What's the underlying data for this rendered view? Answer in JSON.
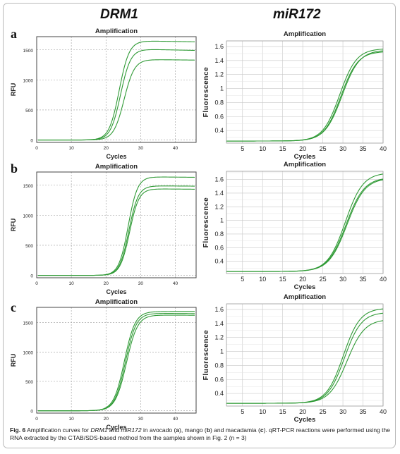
{
  "column_headers": {
    "left": "DRM1",
    "right": "miR172"
  },
  "panel_letters": [
    "a",
    "b",
    "c"
  ],
  "caption": {
    "label": "Fig. 6",
    "t1": "  Amplification curves for ",
    "gene": "DRM1",
    "t2": " and ",
    "mirna": "miR172",
    "t3": " in avocado (",
    "a": "a",
    "t4": "), mango (",
    "b": "b",
    "t5": ") and macadamia (",
    "c": "c",
    "t6": "). qRT-PCR reactions were performed using the RNA extracted by the CTAB/SDS-based method from the samples shown in Fig. 2 (n = 3)"
  },
  "colors": {
    "curve": "#2f9a35",
    "grid": "#c8c8c8",
    "border_left": "#444444",
    "border_right": "#999999"
  },
  "chart_data": [
    {
      "id": "a-DRM1",
      "type": "line",
      "title": "Amplification",
      "xlabel": "Cycles",
      "ylabel": "RFU",
      "xlim": [
        0,
        46
      ],
      "ylim": [
        -40,
        1720
      ],
      "xticks": [
        0,
        10,
        20,
        30,
        40
      ],
      "yticks": [
        0,
        500,
        1000,
        1500
      ],
      "xtick_labels": [
        "0",
        "10",
        "20",
        "30",
        "40"
      ],
      "ytick_labels": [
        "0",
        "500",
        "1000",
        "1500"
      ],
      "grid": "dashed",
      "series": [
        {
          "type": "sigmoid",
          "base": 0,
          "plateau": 1650,
          "mid": 23.8,
          "slope": 1.45,
          "tail": -1
        },
        {
          "type": "sigmoid",
          "base": 0,
          "plateau": 1510,
          "mid": 24.2,
          "slope": 1.45,
          "tail": -1.2
        },
        {
          "type": "sigmoid",
          "base": 0,
          "plateau": 1340,
          "mid": 25.2,
          "slope": 1.5,
          "tail": -0.7
        }
      ]
    },
    {
      "id": "a-miR172",
      "type": "line",
      "title": "Amplification",
      "xlabel": "Cycles",
      "ylabel": "Fluorescence",
      "xlim": [
        1,
        40
      ],
      "ylim": [
        0.22,
        1.68
      ],
      "xticks": [
        5,
        10,
        15,
        20,
        25,
        30,
        35,
        40
      ],
      "yticks": [
        0.4,
        0.6,
        0.8,
        1.0,
        1.2,
        1.4,
        1.6
      ],
      "xtick_labels": [
        "5",
        "10",
        "15",
        "20",
        "25",
        "30",
        "35",
        "40"
      ],
      "ytick_labels": [
        "0.4",
        "0.6",
        "0.8",
        "1",
        "1.2",
        "1.4",
        "1.6"
      ],
      "grid": "solid",
      "series": [
        {
          "type": "sigmoid",
          "base": 0.25,
          "plateau": 1.57,
          "mid": 29.2,
          "slope": 2.1,
          "tail": 0
        },
        {
          "type": "sigmoid",
          "base": 0.25,
          "plateau": 1.53,
          "mid": 29.5,
          "slope": 2.1,
          "tail": 0
        },
        {
          "type": "sigmoid",
          "base": 0.25,
          "plateau": 1.55,
          "mid": 29.8,
          "slope": 2.15,
          "tail": 0
        }
      ]
    },
    {
      "id": "b-DRM1",
      "type": "line",
      "title": "Amplification",
      "xlabel": "Cycles",
      "ylabel": "RFU",
      "xlim": [
        0,
        46
      ],
      "ylim": [
        -40,
        1720
      ],
      "xticks": [
        0,
        10,
        20,
        30,
        40
      ],
      "yticks": [
        0,
        500,
        1000,
        1500
      ],
      "xtick_labels": [
        "0",
        "10",
        "20",
        "30",
        "40"
      ],
      "ytick_labels": [
        "0",
        "500",
        "1000",
        "1500"
      ],
      "grid": "dashed",
      "series": [
        {
          "type": "sigmoid",
          "base": 0,
          "plateau": 1640,
          "mid": 26.4,
          "slope": 1.35,
          "tail": -0.6
        },
        {
          "type": "sigmoid",
          "base": 0,
          "plateau": 1490,
          "mid": 26.6,
          "slope": 1.35,
          "tail": -0.4
        },
        {
          "type": "sigmoid",
          "base": 0,
          "plateau": 1440,
          "mid": 26.8,
          "slope": 1.35,
          "tail": -0.5
        }
      ]
    },
    {
      "id": "b-miR172",
      "type": "line",
      "title": "Amplification",
      "xlabel": "Cycles",
      "ylabel": "Fluorescence",
      "xlim": [
        1,
        40
      ],
      "ylim": [
        0.22,
        1.72
      ],
      "xticks": [
        5,
        10,
        15,
        20,
        25,
        30,
        35,
        40
      ],
      "yticks": [
        0.4,
        0.6,
        0.8,
        1.0,
        1.2,
        1.4,
        1.6
      ],
      "xtick_labels": [
        "5",
        "10",
        "15",
        "20",
        "25",
        "30",
        "35",
        "40"
      ],
      "ytick_labels": [
        "0.4",
        "0.6",
        "0.8",
        "1",
        "1.2",
        "1.4",
        "1.6"
      ],
      "grid": "solid",
      "series": [
        {
          "type": "sigmoid",
          "base": 0.25,
          "plateau": 1.7,
          "mid": 30.6,
          "slope": 2.2,
          "tail": 0
        },
        {
          "type": "sigmoid",
          "base": 0.25,
          "plateau": 1.63,
          "mid": 30.8,
          "slope": 2.25,
          "tail": 0
        },
        {
          "type": "sigmoid",
          "base": 0.25,
          "plateau": 1.62,
          "mid": 31.0,
          "slope": 2.25,
          "tail": 0
        }
      ]
    },
    {
      "id": "c-DRM1",
      "type": "line",
      "title": "Amplification",
      "xlabel": "Cycles",
      "ylabel": "RFU",
      "xlim": [
        0,
        46
      ],
      "ylim": [
        -40,
        1760
      ],
      "xticks": [
        0,
        10,
        20,
        30,
        40
      ],
      "yticks": [
        0,
        500,
        1000,
        1500
      ],
      "xtick_labels": [
        "0",
        "10",
        "20",
        "30",
        "40"
      ],
      "ytick_labels": [
        "0",
        "500",
        "1000",
        "1500"
      ],
      "grid": "dashed",
      "series": [
        {
          "type": "sigmoid",
          "base": 0,
          "plateau": 1690,
          "mid": 25.3,
          "slope": 1.55,
          "tail": 0
        },
        {
          "type": "sigmoid",
          "base": 0,
          "plateau": 1660,
          "mid": 25.6,
          "slope": 1.55,
          "tail": -0.4
        },
        {
          "type": "sigmoid",
          "base": 0,
          "plateau": 1630,
          "mid": 25.9,
          "slope": 1.6,
          "tail": -0.3
        }
      ]
    },
    {
      "id": "c-miR172",
      "type": "line",
      "title": "Amplification",
      "xlabel": "Cycles",
      "ylabel": "Fluorescence",
      "xlim": [
        1,
        40
      ],
      "ylim": [
        0.22,
        1.68
      ],
      "xticks": [
        5,
        10,
        15,
        20,
        25,
        30,
        35,
        40
      ],
      "yticks": [
        0.4,
        0.6,
        0.8,
        1.0,
        1.2,
        1.4,
        1.6
      ],
      "xtick_labels": [
        "5",
        "10",
        "15",
        "20",
        "25",
        "30",
        "35",
        "40"
      ],
      "ytick_labels": [
        "0.4",
        "0.6",
        "0.8",
        "1",
        "1.2",
        "1.4",
        "1.6"
      ],
      "grid": "solid",
      "series": [
        {
          "type": "sigmoid",
          "base": 0.26,
          "plateau": 1.62,
          "mid": 30.1,
          "slope": 2.1,
          "tail": 0
        },
        {
          "type": "sigmoid",
          "base": 0.26,
          "plateau": 1.56,
          "mid": 30.4,
          "slope": 2.1,
          "tail": 0
        },
        {
          "type": "sigmoid",
          "base": 0.26,
          "plateau": 1.46,
          "mid": 31.0,
          "slope": 2.2,
          "tail": 0
        }
      ]
    }
  ]
}
